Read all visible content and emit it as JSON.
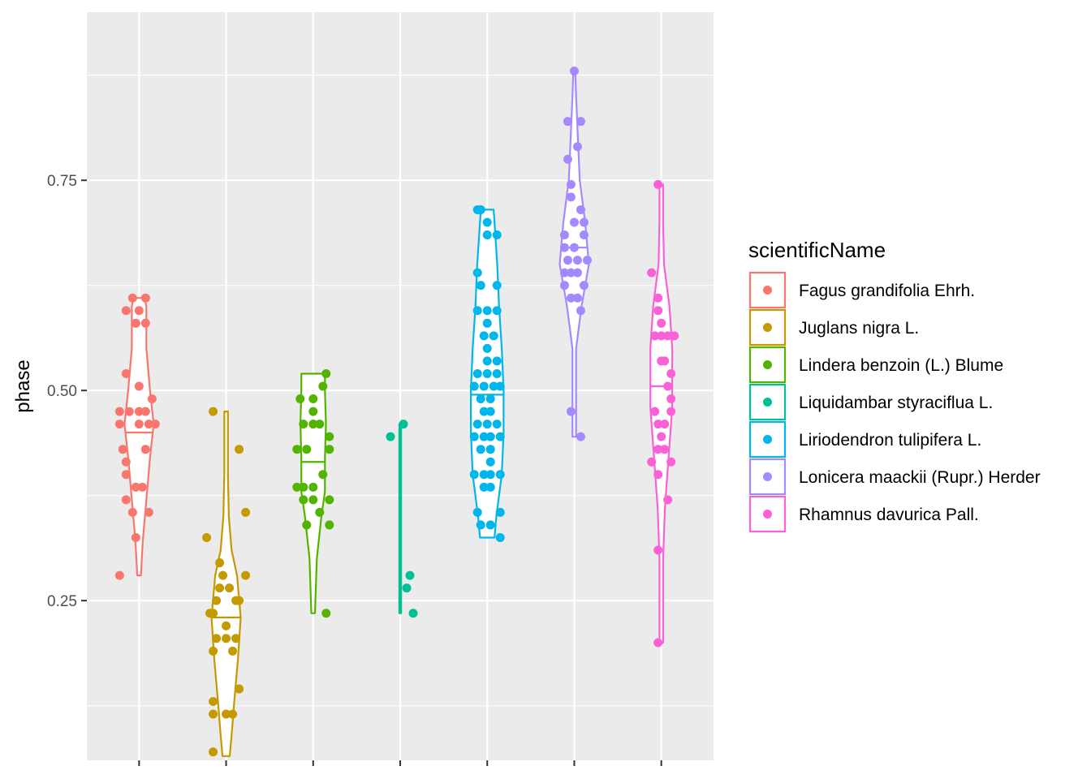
{
  "chart_data": {
    "type": "violin",
    "xlabel": "",
    "ylabel": "phase",
    "ylim": [
      0.06,
      0.95
    ],
    "yticks": [
      0.25,
      0.5,
      0.75
    ],
    "ytick_labels": [
      "0.25",
      "0.50",
      "0.75"
    ],
    "grid": true,
    "legend": {
      "title": "scientificName",
      "position": "right"
    },
    "colors": [
      "#F8766D",
      "#C49A00",
      "#53B400",
      "#00C094",
      "#00B6EB",
      "#A58AFF",
      "#FB61D7"
    ],
    "series": [
      {
        "name": "Fagus grandifolia Ehrh.",
        "median": 0.45,
        "violin": [
          [
            0.28,
            0.002
          ],
          [
            0.32,
            0.004
          ],
          [
            0.37,
            0.008
          ],
          [
            0.42,
            0.012
          ],
          [
            0.46,
            0.016
          ],
          [
            0.5,
            0.012
          ],
          [
            0.55,
            0.008
          ],
          [
            0.6,
            0.008
          ],
          [
            0.61,
            0.006
          ]
        ],
        "points": [
          [
            0.61,
            -0.01
          ],
          [
            0.61,
            0.01
          ],
          [
            0.595,
            -0.02
          ],
          [
            0.595,
            0.0
          ],
          [
            0.58,
            -0.005
          ],
          [
            0.58,
            0.01
          ],
          [
            0.52,
            -0.02
          ],
          [
            0.505,
            0.0
          ],
          [
            0.49,
            0.02
          ],
          [
            0.475,
            -0.03
          ],
          [
            0.475,
            -0.015
          ],
          [
            0.475,
            0.0
          ],
          [
            0.475,
            0.01
          ],
          [
            0.46,
            -0.03
          ],
          [
            0.46,
            0.0
          ],
          [
            0.46,
            0.015
          ],
          [
            0.46,
            0.025
          ],
          [
            0.43,
            -0.025
          ],
          [
            0.43,
            0.01
          ],
          [
            0.415,
            -0.02
          ],
          [
            0.4,
            -0.02
          ],
          [
            0.385,
            -0.005
          ],
          [
            0.385,
            0.005
          ],
          [
            0.37,
            -0.02
          ],
          [
            0.355,
            -0.01
          ],
          [
            0.355,
            0.015
          ],
          [
            0.325,
            -0.005
          ],
          [
            0.28,
            -0.03
          ]
        ]
      },
      {
        "name": "Juglans nigra L.",
        "median": 0.23,
        "violin": [
          [
            0.065,
            0.004
          ],
          [
            0.09,
            0.006
          ],
          [
            0.13,
            0.009
          ],
          [
            0.18,
            0.013
          ],
          [
            0.23,
            0.016
          ],
          [
            0.28,
            0.012
          ],
          [
            0.31,
            0.006
          ],
          [
            0.35,
            0.003
          ],
          [
            0.4,
            0.002
          ],
          [
            0.475,
            0.002
          ]
        ],
        "points": [
          [
            0.475,
            -0.02
          ],
          [
            0.43,
            0.02
          ],
          [
            0.355,
            0.03
          ],
          [
            0.325,
            -0.03
          ],
          [
            0.295,
            -0.01
          ],
          [
            0.28,
            -0.005
          ],
          [
            0.28,
            0.03
          ],
          [
            0.265,
            -0.01
          ],
          [
            0.265,
            0.005
          ],
          [
            0.25,
            -0.015
          ],
          [
            0.25,
            0.015
          ],
          [
            0.25,
            0.02
          ],
          [
            0.235,
            -0.025
          ],
          [
            0.235,
            -0.02
          ],
          [
            0.22,
            0.0
          ],
          [
            0.205,
            -0.015
          ],
          [
            0.205,
            0.0
          ],
          [
            0.205,
            0.015
          ],
          [
            0.19,
            -0.02
          ],
          [
            0.19,
            0.01
          ],
          [
            0.145,
            0.02
          ],
          [
            0.13,
            -0.02
          ],
          [
            0.115,
            -0.02
          ],
          [
            0.115,
            0.0
          ],
          [
            0.115,
            0.01
          ],
          [
            0.07,
            -0.02
          ]
        ]
      },
      {
        "name": "Lindera benzoin (L.) Blume",
        "median": 0.415,
        "violin": [
          [
            0.235,
            0.002
          ],
          [
            0.3,
            0.004
          ],
          [
            0.35,
            0.009
          ],
          [
            0.38,
            0.013
          ],
          [
            0.42,
            0.013
          ],
          [
            0.46,
            0.014
          ],
          [
            0.5,
            0.013
          ],
          [
            0.52,
            0.013
          ]
        ],
        "points": [
          [
            0.52,
            0.02
          ],
          [
            0.505,
            0.015
          ],
          [
            0.49,
            -0.02
          ],
          [
            0.49,
            0.0
          ],
          [
            0.475,
            0.0
          ],
          [
            0.46,
            -0.015
          ],
          [
            0.46,
            0.0
          ],
          [
            0.46,
            0.01
          ],
          [
            0.445,
            0.025
          ],
          [
            0.43,
            -0.025
          ],
          [
            0.43,
            -0.01
          ],
          [
            0.43,
            0.025
          ],
          [
            0.4,
            0.015
          ],
          [
            0.385,
            -0.025
          ],
          [
            0.385,
            -0.015
          ],
          [
            0.385,
            0.0
          ],
          [
            0.37,
            -0.015
          ],
          [
            0.37,
            0.0
          ],
          [
            0.37,
            0.025
          ],
          [
            0.355,
            0.01
          ],
          [
            0.34,
            -0.01
          ],
          [
            0.34,
            0.025
          ],
          [
            0.235,
            0.02
          ]
        ]
      },
      {
        "name": "Liquidambar styraciflua L.",
        "median": 0.33,
        "violin": [
          [
            0.235,
            0.001
          ],
          [
            0.3,
            0.001
          ],
          [
            0.35,
            0.001
          ],
          [
            0.4,
            0.001
          ],
          [
            0.46,
            0.001
          ]
        ],
        "points": [
          [
            0.46,
            0.005
          ],
          [
            0.445,
            -0.015
          ],
          [
            0.28,
            0.015
          ],
          [
            0.265,
            0.01
          ],
          [
            0.235,
            0.02
          ]
        ]
      },
      {
        "name": "Liriodendron tulipifera L.",
        "median": 0.495,
        "violin": [
          [
            0.325,
            0.008
          ],
          [
            0.35,
            0.01
          ],
          [
            0.4,
            0.016
          ],
          [
            0.45,
            0.018
          ],
          [
            0.5,
            0.018
          ],
          [
            0.55,
            0.016
          ],
          [
            0.6,
            0.013
          ],
          [
            0.65,
            0.011
          ],
          [
            0.7,
            0.008
          ],
          [
            0.715,
            0.007
          ]
        ],
        "points": [
          [
            0.715,
            -0.015
          ],
          [
            0.715,
            -0.01
          ],
          [
            0.7,
            0.0
          ],
          [
            0.685,
            0.0
          ],
          [
            0.685,
            0.015
          ],
          [
            0.64,
            -0.015
          ],
          [
            0.625,
            -0.01
          ],
          [
            0.625,
            0.015
          ],
          [
            0.595,
            -0.015
          ],
          [
            0.595,
            0.0
          ],
          [
            0.595,
            0.015
          ],
          [
            0.58,
            0.0
          ],
          [
            0.565,
            -0.005
          ],
          [
            0.565,
            0.01
          ],
          [
            0.55,
            0.0
          ],
          [
            0.535,
            0.0
          ],
          [
            0.535,
            0.015
          ],
          [
            0.52,
            -0.015
          ],
          [
            0.52,
            0.0
          ],
          [
            0.52,
            0.015
          ],
          [
            0.505,
            -0.02
          ],
          [
            0.505,
            -0.005
          ],
          [
            0.505,
            0.01
          ],
          [
            0.505,
            0.02
          ],
          [
            0.49,
            -0.01
          ],
          [
            0.49,
            0.005
          ],
          [
            0.475,
            -0.005
          ],
          [
            0.475,
            0.005
          ],
          [
            0.46,
            -0.015
          ],
          [
            0.46,
            0.0
          ],
          [
            0.46,
            0.015
          ],
          [
            0.445,
            -0.02
          ],
          [
            0.445,
            -0.005
          ],
          [
            0.445,
            0.005
          ],
          [
            0.445,
            0.02
          ],
          [
            0.43,
            -0.01
          ],
          [
            0.43,
            0.005
          ],
          [
            0.415,
            0.005
          ],
          [
            0.4,
            -0.02
          ],
          [
            0.4,
            -0.005
          ],
          [
            0.4,
            0.005
          ],
          [
            0.4,
            0.02
          ],
          [
            0.385,
            -0.005
          ],
          [
            0.385,
            0.005
          ],
          [
            0.355,
            -0.015
          ],
          [
            0.355,
            0.02
          ],
          [
            0.34,
            -0.01
          ],
          [
            0.34,
            0.005
          ],
          [
            0.325,
            0.02
          ]
        ]
      },
      {
        "name": "Lonicera maackii (Rupr.) Herder",
        "median": 0.67,
        "violin": [
          [
            0.445,
            0.002
          ],
          [
            0.5,
            0.002
          ],
          [
            0.55,
            0.002
          ],
          [
            0.6,
            0.008
          ],
          [
            0.65,
            0.016
          ],
          [
            0.7,
            0.012
          ],
          [
            0.75,
            0.006
          ],
          [
            0.8,
            0.004
          ],
          [
            0.85,
            0.002
          ],
          [
            0.88,
            0.001
          ]
        ],
        "points": [
          [
            0.88,
            0.0
          ],
          [
            0.82,
            -0.01
          ],
          [
            0.82,
            0.01
          ],
          [
            0.79,
            0.005
          ],
          [
            0.775,
            -0.01
          ],
          [
            0.745,
            -0.005
          ],
          [
            0.73,
            -0.005
          ],
          [
            0.715,
            0.01
          ],
          [
            0.7,
            0.0
          ],
          [
            0.7,
            0.015
          ],
          [
            0.685,
            -0.015
          ],
          [
            0.685,
            0.015
          ],
          [
            0.67,
            -0.015
          ],
          [
            0.67,
            0.0
          ],
          [
            0.655,
            -0.01
          ],
          [
            0.655,
            0.005
          ],
          [
            0.655,
            0.02
          ],
          [
            0.64,
            -0.015
          ],
          [
            0.64,
            -0.005
          ],
          [
            0.64,
            0.005
          ],
          [
            0.625,
            -0.015
          ],
          [
            0.625,
            0.015
          ],
          [
            0.61,
            -0.005
          ],
          [
            0.61,
            0.005
          ],
          [
            0.595,
            0.01
          ],
          [
            0.475,
            -0.005
          ],
          [
            0.445,
            0.01
          ]
        ]
      },
      {
        "name": "Rhamnus davurica Pall.",
        "median": 0.505,
        "violin": [
          [
            0.2,
            0.002
          ],
          [
            0.3,
            0.002
          ],
          [
            0.36,
            0.004
          ],
          [
            0.42,
            0.008
          ],
          [
            0.48,
            0.012
          ],
          [
            0.55,
            0.012
          ],
          [
            0.6,
            0.009
          ],
          [
            0.65,
            0.003
          ],
          [
            0.7,
            0.002
          ],
          [
            0.745,
            0.002
          ]
        ],
        "points": [
          [
            0.745,
            -0.005
          ],
          [
            0.64,
            -0.015
          ],
          [
            0.61,
            -0.005
          ],
          [
            0.595,
            -0.005
          ],
          [
            0.58,
            0.0
          ],
          [
            0.565,
            -0.01
          ],
          [
            0.565,
            0.0
          ],
          [
            0.565,
            0.01
          ],
          [
            0.565,
            0.02
          ],
          [
            0.535,
            0.0
          ],
          [
            0.535,
            0.005
          ],
          [
            0.52,
            0.015
          ],
          [
            0.505,
            0.01
          ],
          [
            0.49,
            0.015
          ],
          [
            0.475,
            -0.01
          ],
          [
            0.475,
            0.015
          ],
          [
            0.46,
            -0.005
          ],
          [
            0.46,
            0.005
          ],
          [
            0.445,
            0.0
          ],
          [
            0.43,
            -0.005
          ],
          [
            0.43,
            0.005
          ],
          [
            0.415,
            -0.015
          ],
          [
            0.415,
            0.015
          ],
          [
            0.4,
            -0.005
          ],
          [
            0.37,
            0.01
          ],
          [
            0.31,
            -0.005
          ],
          [
            0.2,
            -0.005
          ]
        ]
      }
    ]
  }
}
